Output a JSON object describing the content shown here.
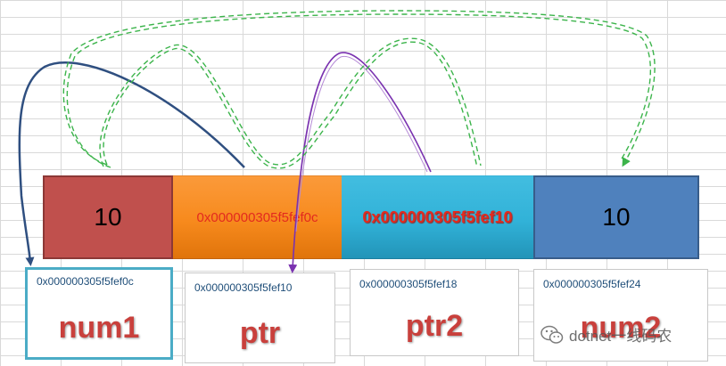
{
  "memory_cells": [
    {
      "id": "num1",
      "value": "10"
    },
    {
      "id": "ptr",
      "value": "0x000000305f5fef0c"
    },
    {
      "id": "ptr2",
      "value": "0x000000305f5fef10"
    },
    {
      "id": "num2",
      "value": "10"
    }
  ],
  "address_boxes": [
    {
      "address": "0x000000305f5fef0c",
      "name": "num1"
    },
    {
      "address": "0x000000305f5fef10",
      "name": "ptr"
    },
    {
      "address": "0x000000305f5fef18",
      "name": "ptr2"
    },
    {
      "address": "0x000000305f5fef24",
      "name": "num2"
    }
  ],
  "colors": {
    "num1_cell": "#c0504d",
    "ptr_cell": "#f78a1d",
    "ptr2_cell": "#31b2d8",
    "num2_cell": "#4f81bd",
    "ptr_arrow": "#2f4f80",
    "ptr2_arrow": "#7a32b0",
    "copy_arrow": "#3cb44b",
    "label_red": "#c9403c"
  },
  "watermark": {
    "text": "dotnet一线码农",
    "icon": "wechat-icon"
  }
}
